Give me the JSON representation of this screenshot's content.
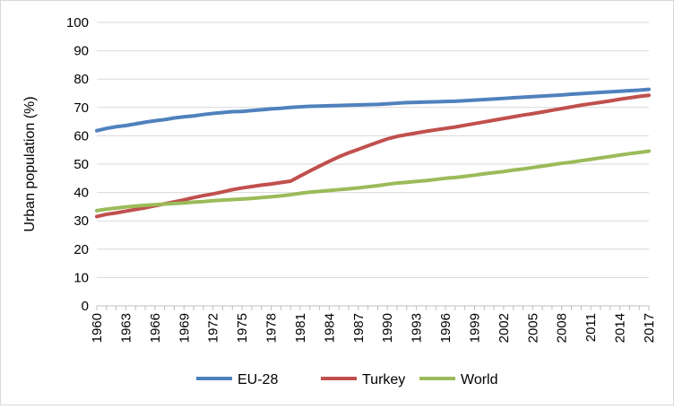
{
  "chart_data": {
    "type": "line",
    "title": "",
    "xlabel": "",
    "ylabel": "Urban population (%)",
    "xlim": [
      1960,
      2017
    ],
    "ylim": [
      0,
      100
    ],
    "x_ticks": [
      1960,
      1963,
      1966,
      1969,
      1972,
      1975,
      1978,
      1981,
      1984,
      1987,
      1990,
      1993,
      1996,
      1999,
      2002,
      2005,
      2008,
      2011,
      2014,
      2017
    ],
    "y_ticks": [
      0,
      10,
      20,
      30,
      40,
      50,
      60,
      70,
      80,
      90,
      100
    ],
    "grid": "horizontal",
    "legend": "bottom",
    "x": [
      1960,
      1961,
      1962,
      1963,
      1964,
      1965,
      1966,
      1967,
      1968,
      1969,
      1970,
      1971,
      1972,
      1973,
      1974,
      1975,
      1976,
      1977,
      1978,
      1979,
      1980,
      1981,
      1982,
      1983,
      1984,
      1985,
      1986,
      1987,
      1988,
      1989,
      1990,
      1991,
      1992,
      1993,
      1994,
      1995,
      1996,
      1997,
      1998,
      1999,
      2000,
      2001,
      2002,
      2003,
      2004,
      2005,
      2006,
      2007,
      2008,
      2009,
      2010,
      2011,
      2012,
      2013,
      2014,
      2015,
      2016,
      2017
    ],
    "series": [
      {
        "name": "EU-28",
        "color": "#4f81bd",
        "values": [
          61.8,
          62.6,
          63.2,
          63.6,
          64.2,
          64.8,
          65.3,
          65.7,
          66.3,
          66.7,
          67.0,
          67.5,
          67.9,
          68.2,
          68.5,
          68.6,
          68.9,
          69.2,
          69.5,
          69.7,
          70.0,
          70.2,
          70.4,
          70.5,
          70.6,
          70.7,
          70.8,
          70.9,
          71.0,
          71.1,
          71.3,
          71.5,
          71.7,
          71.8,
          71.9,
          72.0,
          72.1,
          72.2,
          72.4,
          72.6,
          72.8,
          73.0,
          73.2,
          73.4,
          73.6,
          73.8,
          74.0,
          74.2,
          74.4,
          74.7,
          74.9,
          75.1,
          75.3,
          75.5,
          75.7,
          75.9,
          76.1,
          76.4
        ]
      },
      {
        "name": "Turkey",
        "color": "#c0504d",
        "values": [
          31.5,
          32.3,
          32.8,
          33.4,
          34.0,
          34.6,
          35.3,
          36.0,
          36.7,
          37.4,
          38.2,
          38.9,
          39.5,
          40.2,
          41.0,
          41.6,
          42.1,
          42.6,
          43.0,
          43.5,
          44.0,
          45.8,
          47.6,
          49.3,
          51.0,
          52.6,
          54.0,
          55.2,
          56.5,
          57.7,
          58.9,
          59.8,
          60.4,
          61.0,
          61.6,
          62.1,
          62.6,
          63.1,
          63.7,
          64.3,
          64.9,
          65.5,
          66.1,
          66.7,
          67.3,
          67.8,
          68.4,
          69.0,
          69.6,
          70.2,
          70.8,
          71.3,
          71.8,
          72.3,
          72.9,
          73.4,
          73.9,
          74.3
        ]
      },
      {
        "name": "World",
        "color": "#9bbb59",
        "values": [
          33.6,
          34.1,
          34.5,
          34.9,
          35.2,
          35.5,
          35.7,
          35.9,
          36.1,
          36.3,
          36.6,
          36.8,
          37.1,
          37.3,
          37.5,
          37.7,
          37.9,
          38.2,
          38.5,
          38.8,
          39.2,
          39.7,
          40.1,
          40.4,
          40.7,
          41.0,
          41.3,
          41.6,
          42.0,
          42.4,
          42.9,
          43.3,
          43.6,
          43.9,
          44.2,
          44.6,
          45.0,
          45.3,
          45.7,
          46.1,
          46.6,
          47.0,
          47.4,
          47.9,
          48.3,
          48.8,
          49.3,
          49.8,
          50.3,
          50.7,
          51.2,
          51.7,
          52.2,
          52.7,
          53.2,
          53.7,
          54.1,
          54.6
        ]
      }
    ]
  }
}
